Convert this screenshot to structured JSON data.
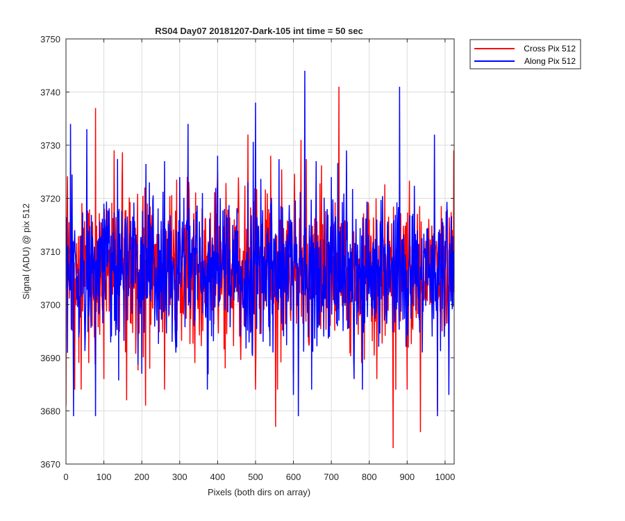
{
  "colors": {
    "cross": "#ff0000",
    "along": "#0000ff",
    "grid": "#dcdcdc",
    "axis": "#262626"
  },
  "chart_data": {
    "type": "line",
    "title": "RS04 Day07 20181207-Dark-105 int time = 50 sec",
    "xlabel": "Pixels (both dirs on array)",
    "ylabel": "Signal (ADU) @ pix 512",
    "xlim": [
      0,
      1024
    ],
    "ylim": [
      3670,
      3750
    ],
    "x_ticks": [
      0,
      100,
      200,
      300,
      400,
      500,
      600,
      700,
      800,
      900,
      1000
    ],
    "y_ticks": [
      3670,
      3680,
      3690,
      3700,
      3710,
      3720,
      3730,
      3740,
      3750
    ],
    "grid": true,
    "legend_position": "outside-top-right",
    "series": [
      {
        "name": "Cross Pix 512",
        "color": "#ff0000",
        "x": [
          0,
          20,
          40,
          60,
          78,
          100,
          120,
          140,
          160,
          180,
          200,
          210,
          230,
          260,
          290,
          320,
          340,
          360,
          380,
          400,
          420,
          440,
          460,
          480,
          500,
          520,
          540,
          553,
          570,
          600,
          620,
          640,
          660,
          680,
          700,
          720,
          740,
          760,
          780,
          800,
          820,
          840,
          863,
          880,
          900,
          920,
          935,
          960,
          980,
          1000,
          1010,
          1023
        ],
        "y": [
          3681,
          3694,
          3684,
          3689,
          3737,
          3686,
          3702,
          3713,
          3682,
          3703,
          3712,
          3681,
          3714,
          3684,
          3705,
          3724,
          3689,
          3716,
          3699,
          3725,
          3688,
          3714,
          3694,
          3732,
          3684,
          3706,
          3728,
          3677,
          3713,
          3687,
          3731,
          3693,
          3713,
          3695,
          3712,
          3741,
          3697,
          3708,
          3689,
          3716,
          3686,
          3701,
          3673,
          3711,
          3684,
          3705,
          3676,
          3700,
          3680,
          3696,
          3687,
          3729
        ]
      },
      {
        "name": "Along Pix 512",
        "color": "#0000ff",
        "x": [
          0,
          12,
          20,
          40,
          55,
          78,
          100,
          120,
          140,
          160,
          180,
          200,
          220,
          240,
          260,
          280,
          300,
          322,
          340,
          360,
          380,
          400,
          420,
          440,
          460,
          480,
          500,
          520,
          540,
          560,
          580,
          600,
          613,
          630,
          640,
          660,
          680,
          700,
          720,
          740,
          760,
          780,
          800,
          820,
          840,
          860,
          880,
          900,
          920,
          940,
          960,
          980,
          1000,
          1010,
          1023
        ],
        "y": [
          3703,
          3734,
          3679,
          3713,
          3733,
          3679,
          3719,
          3694,
          3718,
          3697,
          3713,
          3687,
          3723,
          3697,
          3727,
          3693,
          3724,
          3734,
          3697,
          3721,
          3697,
          3728,
          3699,
          3715,
          3694,
          3723,
          3738,
          3693,
          3719,
          3699,
          3712,
          3683,
          3679,
          3744,
          3697,
          3727,
          3694,
          3724,
          3697,
          3729,
          3686,
          3713,
          3702,
          3716,
          3697,
          3709,
          3741,
          3697,
          3712,
          3691,
          3705,
          3679,
          3712,
          3683,
          3705
        ]
      }
    ]
  }
}
